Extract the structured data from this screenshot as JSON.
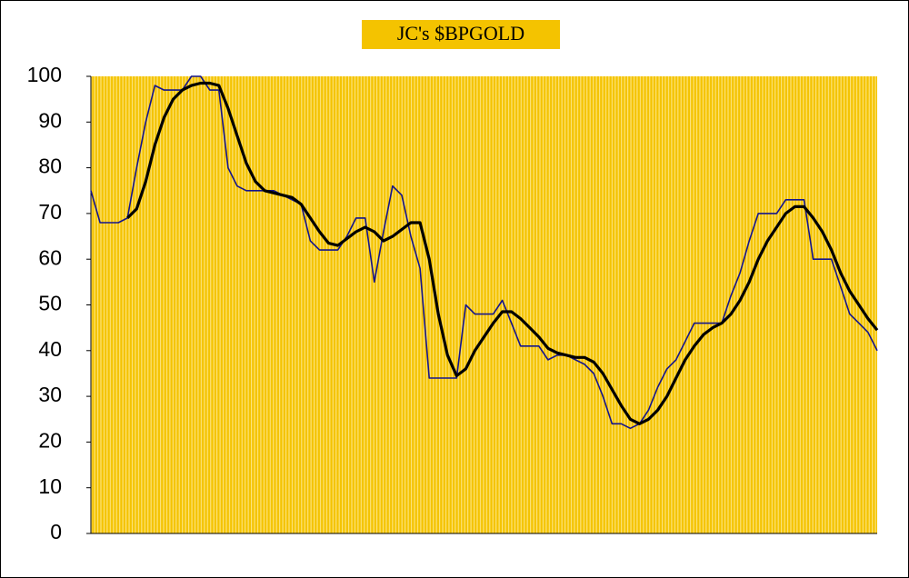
{
  "chart_data": {
    "type": "line",
    "title": "JC's $BPGOLD",
    "categories": [
      null,
      null,
      null,
      null,
      null,
      null,
      null,
      null,
      null,
      null,
      null,
      null,
      null,
      null,
      null,
      null,
      null,
      null,
      null,
      null,
      null,
      null,
      null,
      null,
      null,
      null,
      null,
      null,
      null,
      null,
      null,
      null,
      null,
      null,
      null,
      null,
      null,
      null,
      null,
      null,
      null,
      null,
      null,
      null,
      null,
      null,
      null,
      null,
      null,
      null,
      null,
      null,
      null,
      null,
      null,
      null,
      null,
      null,
      null,
      null,
      null,
      null,
      null,
      null,
      null,
      null,
      null,
      null,
      null,
      null,
      null,
      null,
      null,
      null,
      null,
      null,
      null,
      null,
      null,
      null,
      null,
      null,
      null,
      null,
      null,
      null,
      null
    ],
    "series": [
      {
        "color": "#14148c",
        "values": [
          75,
          68,
          68,
          68,
          69,
          80,
          90,
          98,
          97,
          97,
          97,
          100,
          100,
          97,
          97,
          80,
          76,
          75,
          75,
          75,
          75,
          74,
          73,
          72,
          64,
          62,
          62,
          62,
          65,
          69,
          69,
          55,
          66,
          76,
          74,
          65,
          58,
          34,
          34,
          34,
          34,
          50,
          48,
          48,
          48,
          51,
          46,
          41,
          41,
          41,
          38,
          39,
          39,
          38,
          37,
          35,
          30,
          24,
          24,
          23,
          24,
          27,
          32,
          36,
          38,
          42,
          46,
          46,
          46,
          46,
          52,
          57,
          64,
          70,
          70,
          70,
          73,
          73,
          73,
          60,
          60,
          60,
          54,
          48,
          46,
          44,
          40
        ]
      },
      {
        "color": "#000000",
        "values": [
          null,
          null,
          null,
          null,
          69,
          71,
          77,
          85,
          91,
          95,
          97,
          98,
          98.5,
          98.5,
          98,
          93,
          87,
          81,
          77,
          75,
          74.5,
          74,
          73.5,
          72,
          69,
          66,
          63.5,
          63,
          64.5,
          66,
          67,
          66,
          64,
          65,
          66.5,
          68,
          68,
          60,
          48,
          39,
          34.5,
          36,
          40,
          43,
          46,
          48.5,
          48.5,
          47,
          45,
          43,
          40.5,
          39.5,
          39,
          38.5,
          38.5,
          37.5,
          35,
          31.5,
          28,
          25,
          24,
          25,
          27,
          30,
          34,
          38,
          41,
          43.5,
          45,
          46,
          48,
          51,
          55,
          60,
          64,
          67,
          70,
          71.5,
          71.5,
          69,
          66,
          62,
          57,
          53,
          50,
          47,
          44.5
        ]
      }
    ],
    "ylim": [
      0,
      100
    ],
    "yticks": [
      0,
      10,
      20,
      30,
      40,
      50,
      60,
      70,
      80,
      90,
      100
    ],
    "background": "#f4c300"
  }
}
